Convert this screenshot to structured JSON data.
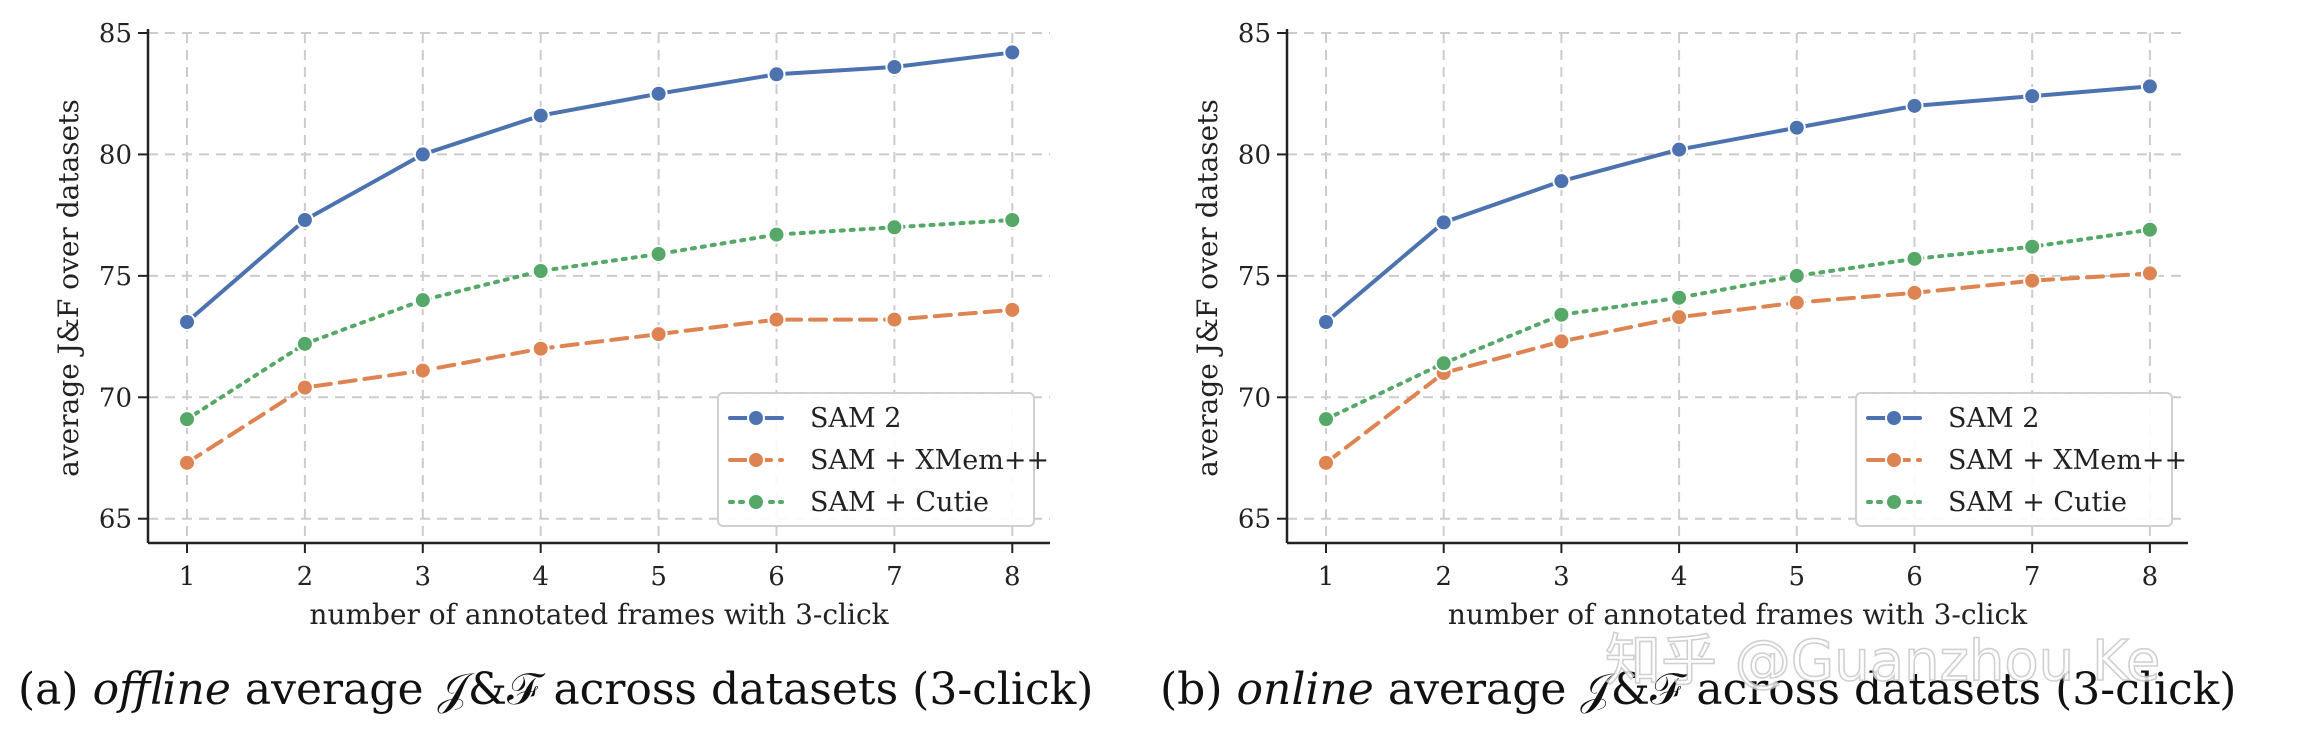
{
  "watermark": "知乎 @Guanzhou Ke",
  "colors": {
    "SAM 2": "#4c72b0",
    "SAM + XMem++": "#dd8452",
    "SAM + Cutie": "#55a868"
  },
  "chart_data": [
    {
      "type": "line",
      "panel_id": "offline",
      "caption_prefix": "(a)",
      "caption_italic": "offline",
      "caption_suffix": "average 𝒥&ℱ across datasets (3-click)",
      "xlabel": "number of annotated frames with 3-click",
      "ylabel": "average J&F over datasets",
      "x": [
        1,
        2,
        3,
        4,
        5,
        6,
        7,
        8
      ],
      "ylim": [
        64,
        85
      ],
      "yticks": [
        65,
        70,
        75,
        80,
        85
      ],
      "grid": true,
      "legend_position": "lower-right",
      "series": [
        {
          "name": "SAM 2",
          "style": "solid",
          "values": [
            73.1,
            77.3,
            80.0,
            81.6,
            82.5,
            83.3,
            83.6,
            84.2
          ]
        },
        {
          "name": "SAM + XMem++",
          "style": "dashed",
          "values": [
            67.3,
            70.4,
            71.1,
            72.0,
            72.6,
            73.2,
            73.2,
            73.6
          ]
        },
        {
          "name": "SAM + Cutie",
          "style": "dotted",
          "values": [
            69.1,
            72.2,
            74.0,
            75.2,
            75.9,
            76.7,
            77.0,
            77.3
          ]
        }
      ]
    },
    {
      "type": "line",
      "panel_id": "online",
      "caption_prefix": "(b)",
      "caption_italic": "online",
      "caption_suffix": "average 𝒥&ℱ across datasets (3-click)",
      "xlabel": "number of annotated frames with 3-click",
      "ylabel": "average J&F over datasets",
      "x": [
        1,
        2,
        3,
        4,
        5,
        6,
        7,
        8
      ],
      "ylim": [
        64,
        85
      ],
      "yticks": [
        65,
        70,
        75,
        80,
        85
      ],
      "grid": true,
      "legend_position": "lower-right",
      "series": [
        {
          "name": "SAM 2",
          "style": "solid",
          "values": [
            73.1,
            77.2,
            78.9,
            80.2,
            81.1,
            82.0,
            82.4,
            82.8
          ]
        },
        {
          "name": "SAM + XMem++",
          "style": "dashed",
          "values": [
            67.3,
            71.0,
            72.3,
            73.3,
            73.9,
            74.3,
            74.8,
            75.1
          ]
        },
        {
          "name": "SAM + Cutie",
          "style": "dotted",
          "values": [
            69.1,
            71.4,
            73.4,
            74.1,
            75.0,
            75.7,
            76.2,
            76.9
          ]
        }
      ]
    }
  ]
}
